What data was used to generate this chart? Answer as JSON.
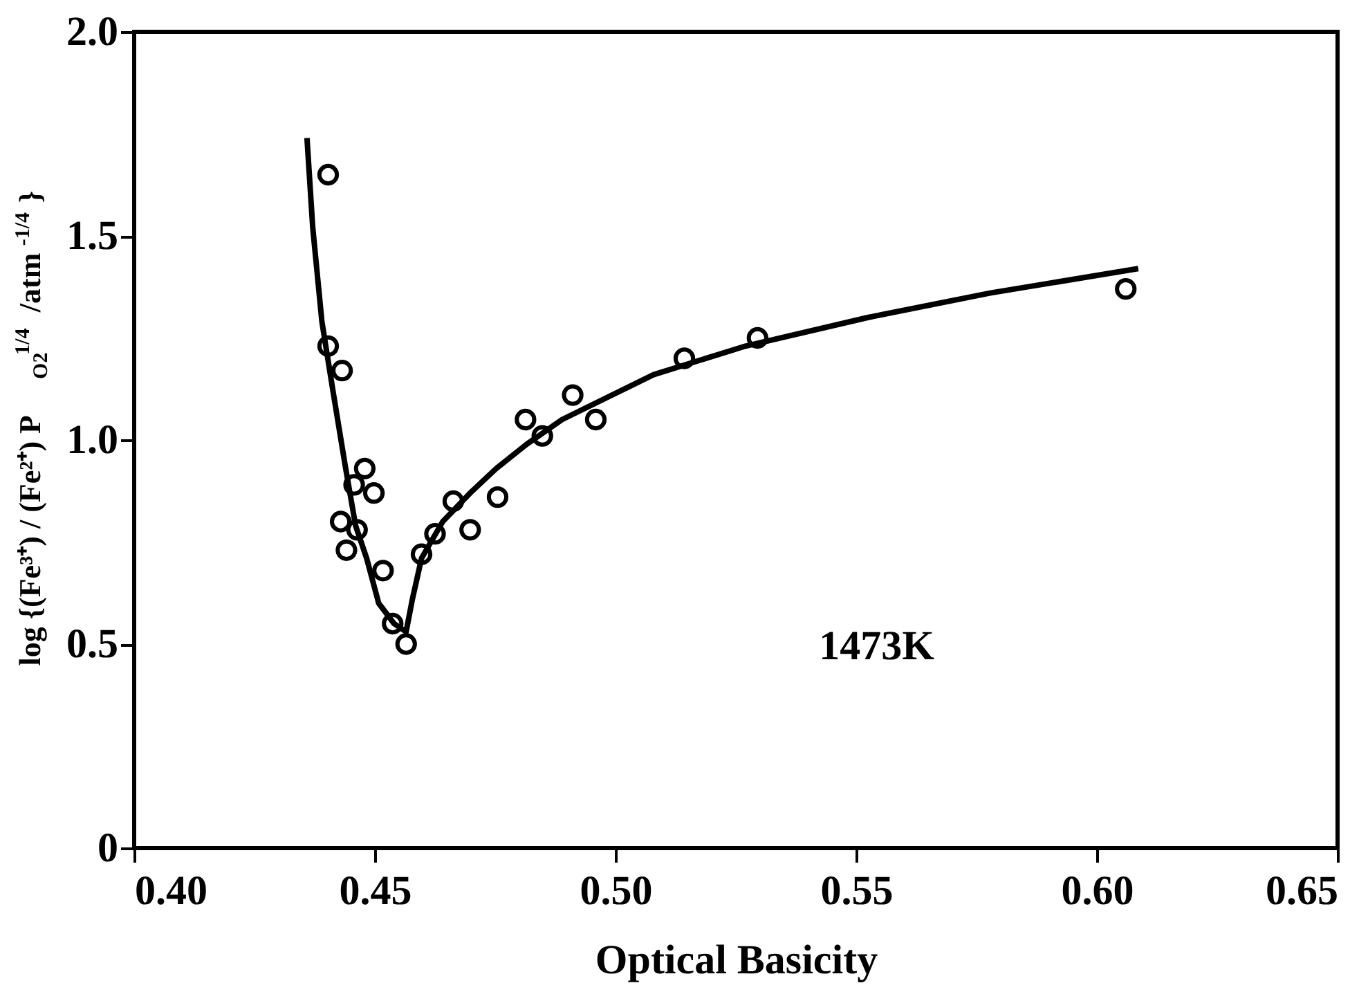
{
  "chart_data": {
    "type": "scatter",
    "xlabel": "Optical Basicity",
    "ylabel": "log {(Fe³⁺) / (Fe²⁺) P$_{O2}$$^{1/4}$ /atm$^{-1/4}$}",
    "xlim": [
      0.4,
      0.65
    ],
    "ylim": [
      0,
      2.0
    ],
    "xticks": [
      {
        "value": 0.4,
        "label": "0.40"
      },
      {
        "value": 0.45,
        "label": "0.45"
      },
      {
        "value": 0.5,
        "label": "0.50"
      },
      {
        "value": 0.55,
        "label": "0.55"
      },
      {
        "value": 0.6,
        "label": "0.60"
      },
      {
        "value": 0.65,
        "label": "0.65"
      }
    ],
    "yticks": [
      0,
      0.5,
      {
        "value": 1.0,
        "label": "1.0"
      },
      1.5,
      {
        "value": 2.0,
        "label": "2.0"
      }
    ],
    "grid": false,
    "annotations": [
      "1473K"
    ],
    "series": [
      {
        "marker": "circle",
        "color": "#000000",
        "x": [
          0.4403,
          0.4403,
          0.4432,
          0.4479,
          0.4457,
          0.4498,
          0.4429,
          0.4463,
          0.4441,
          0.4517,
          0.4537,
          0.4565,
          0.4597,
          0.4625,
          0.4663,
          0.4698,
          0.4755,
          0.4813,
          0.4848,
          0.4911,
          0.4959,
          0.5143,
          0.5295,
          0.606
        ],
        "values": [
          1.65,
          1.23,
          1.17,
          0.93,
          0.89,
          0.87,
          0.8,
          0.78,
          0.73,
          0.68,
          0.55,
          0.5,
          0.72,
          0.77,
          0.85,
          0.78,
          0.86,
          1.05,
          1.01,
          1.11,
          1.05,
          1.2,
          1.25,
          1.37
        ]
      },
      {
        "type": "line",
        "marker": "none",
        "color": "#000000",
        "line_style": "solid",
        "x": [
          0.4359,
          0.4371,
          0.439,
          0.4413,
          0.4438,
          0.446,
          0.4483,
          0.4508,
          0.454,
          0.4565,
          0.4578,
          0.4597,
          0.4641,
          0.4698,
          0.4752,
          0.4816,
          0.4889,
          0.5079,
          0.527,
          0.5524,
          0.5778,
          0.6086
        ],
        "values": [
          1.74,
          1.52,
          1.29,
          1.12,
          0.94,
          0.79,
          0.71,
          0.6,
          0.55,
          0.53,
          0.61,
          0.71,
          0.8,
          0.87,
          0.93,
          0.99,
          1.05,
          1.16,
          1.23,
          1.3,
          1.36,
          1.42
        ]
      }
    ]
  }
}
